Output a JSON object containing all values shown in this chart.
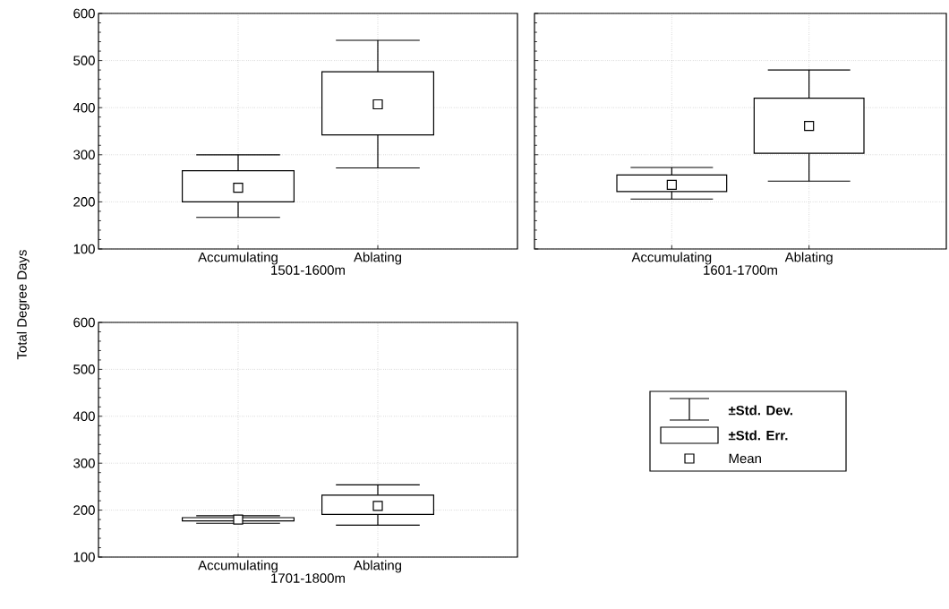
{
  "chart_data": [
    {
      "type": "box",
      "xlabel": "1501-1600m",
      "ylabel": "Total Degree Days",
      "categories": [
        "Accumulating",
        "Ablating"
      ],
      "ylim": [
        100,
        600
      ],
      "yticks": [
        100,
        200,
        300,
        400,
        500,
        600
      ],
      "grid": true,
      "boxes": [
        {
          "low": 167,
          "q1": 200,
          "q3": 266,
          "high": 300,
          "mean": 230
        },
        {
          "low": 272,
          "q1": 342,
          "q3": 476,
          "high": 543,
          "mean": 407
        }
      ]
    },
    {
      "type": "box",
      "xlabel": "1601-1700m",
      "categories": [
        "Accumulating",
        "Ablating"
      ],
      "ylim": [
        100,
        600
      ],
      "yticks": [
        100,
        200,
        300,
        400,
        500,
        600
      ],
      "grid": true,
      "tick_labels": "x",
      "boxes": [
        {
          "low": 206,
          "q1": 222,
          "q3": 257,
          "high": 273,
          "mean": 236
        },
        {
          "low": 244,
          "q1": 303,
          "q3": 420,
          "high": 480,
          "mean": 361
        }
      ]
    },
    {
      "type": "box",
      "xlabel": "1701-1800m",
      "categories": [
        "Accumulating",
        "Ablating"
      ],
      "ylim": [
        100,
        600
      ],
      "yticks": [
        100,
        200,
        300,
        400,
        500,
        600
      ],
      "grid": true,
      "boxes": [
        {
          "low": 172,
          "q1": 177,
          "q3": 184,
          "high": 188,
          "mean": 180
        },
        {
          "low": 168,
          "q1": 191,
          "q3": 232,
          "high": 254,
          "mean": 209
        }
      ]
    },
    {
      "type": "other",
      "annotations": [
        "±Std. Dev.",
        "±Std. Err.",
        "Mean"
      ]
    }
  ]
}
